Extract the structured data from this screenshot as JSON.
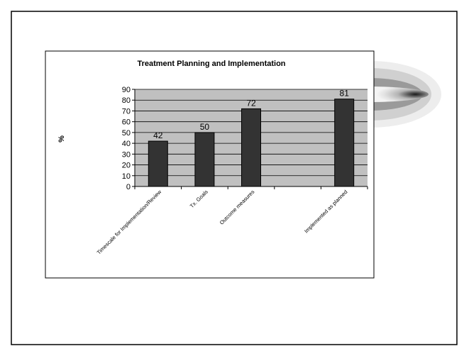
{
  "chart_data": {
    "type": "bar",
    "title": "Treatment Planning and Implementation",
    "ylabel": "%",
    "xlabel": "",
    "categories": [
      "Timescale for Implementation/Review",
      "Tx. Goals",
      "Outcome measures",
      "",
      "Implemented as planned"
    ],
    "values": [
      42,
      50,
      72,
      null,
      81
    ],
    "ylim": [
      0,
      90
    ],
    "yticks": [
      0,
      10,
      20,
      30,
      40,
      50,
      60,
      70,
      80,
      90
    ],
    "grid": true,
    "legend": "none",
    "colors": {
      "bar": "#333333",
      "plot_bg": "#c0c0c0",
      "grid": "#000000"
    }
  }
}
